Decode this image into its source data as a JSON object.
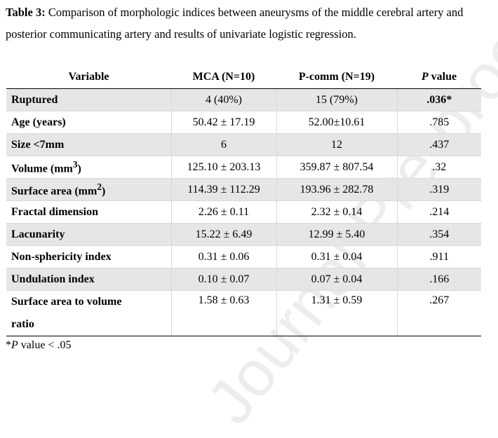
{
  "caption": {
    "label": "Table 3:",
    "text": " Comparison of morphologic indices between aneurysms of the middle cerebral artery and posterior communicating artery and results of univariate logistic regression."
  },
  "watermark": "Journal Pre-proof",
  "table": {
    "headers": {
      "variable": "Variable",
      "mca": "MCA (N=10)",
      "pcomm": "P-comm (N=19)",
      "p_italic": "P",
      "p_rest": " value"
    },
    "rows": [
      {
        "variable": "Ruptured",
        "mca": "4 (40%)",
        "pcomm": "15 (79%)",
        "p": ".036*"
      },
      {
        "variable": "Age (years)",
        "mca": "50.42 ± 17.19",
        "pcomm": "52.00±10.61",
        "p": ".785"
      },
      {
        "variable": "Size <7mm",
        "mca": "6",
        "pcomm": "12",
        "p": ".437"
      },
      {
        "variable_main": "Volume (mm",
        "variable_sup": "3",
        "variable_end": ")",
        "mca": "125.10 ± 203.13",
        "pcomm": "359.87 ± 807.54",
        "p": ".32"
      },
      {
        "variable_main": "Surface area (mm",
        "variable_sup": "2",
        "variable_end": ")",
        "mca": "114.39 ± 112.29",
        "pcomm": "193.96 ± 282.78",
        "p": ".319"
      },
      {
        "variable": "Fractal dimension",
        "mca": "2.26 ± 0.11",
        "pcomm": "2.32 ± 0.14",
        "p": ".214"
      },
      {
        "variable": "Lacunarity",
        "mca": "15.22 ± 6.49",
        "pcomm": "12.99 ± 5.40",
        "p": ".354"
      },
      {
        "variable": "Non-sphericity index",
        "mca": "0.31 ± 0.06",
        "pcomm": "0.31 ± 0.04",
        "p": ".911"
      },
      {
        "variable": "Undulation index",
        "mca": "0.10 ± 0.07",
        "pcomm": "0.07 ± 0.04",
        "p": ".166"
      },
      {
        "variable_line1": "Surface area to volume",
        "variable_line2": "ratio",
        "mca": "1.58 ± 0.63",
        "pcomm": "1.31 ± 0.59",
        "p": ".267"
      }
    ]
  },
  "footnote": {
    "prefix": "*",
    "italic": "P",
    "rest": " value < .05"
  }
}
